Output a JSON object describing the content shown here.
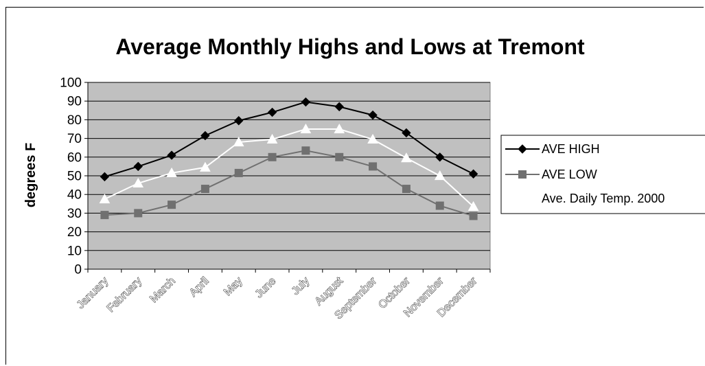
{
  "chart_data": {
    "type": "line",
    "title": "Average Monthly Highs and Lows at Tremont",
    "xlabel": "",
    "ylabel": "degrees  F",
    "ylim": [
      0,
      100
    ],
    "yticks": [
      0,
      10,
      20,
      30,
      40,
      50,
      60,
      70,
      80,
      90,
      100
    ],
    "grid": true,
    "plot_background": "#c0c0c0",
    "legend_position": "right",
    "categories": [
      "January",
      "February",
      "March",
      "April",
      "May",
      "June",
      "July",
      "August",
      "September",
      "October",
      "November",
      "December"
    ],
    "series": [
      {
        "name": "AVE HIGH",
        "color": "#000000",
        "marker": "diamond",
        "values": [
          49.5,
          55,
          61,
          71.5,
          79.5,
          84,
          89.5,
          87,
          82.5,
          73,
          60,
          51
        ]
      },
      {
        "name": "AVE LOW",
        "color": "#707070",
        "marker": "square",
        "values": [
          29,
          30,
          34.5,
          43,
          51.5,
          60,
          63.5,
          60,
          55,
          43,
          34,
          28.5
        ]
      },
      {
        "name": "Ave. Daily Temp. 2000",
        "color": "#ffffff",
        "marker": "triangle",
        "values": [
          37.5,
          46,
          51.5,
          54.5,
          68,
          69.5,
          75,
          75,
          69.5,
          59.5,
          50,
          33.5
        ]
      }
    ]
  }
}
